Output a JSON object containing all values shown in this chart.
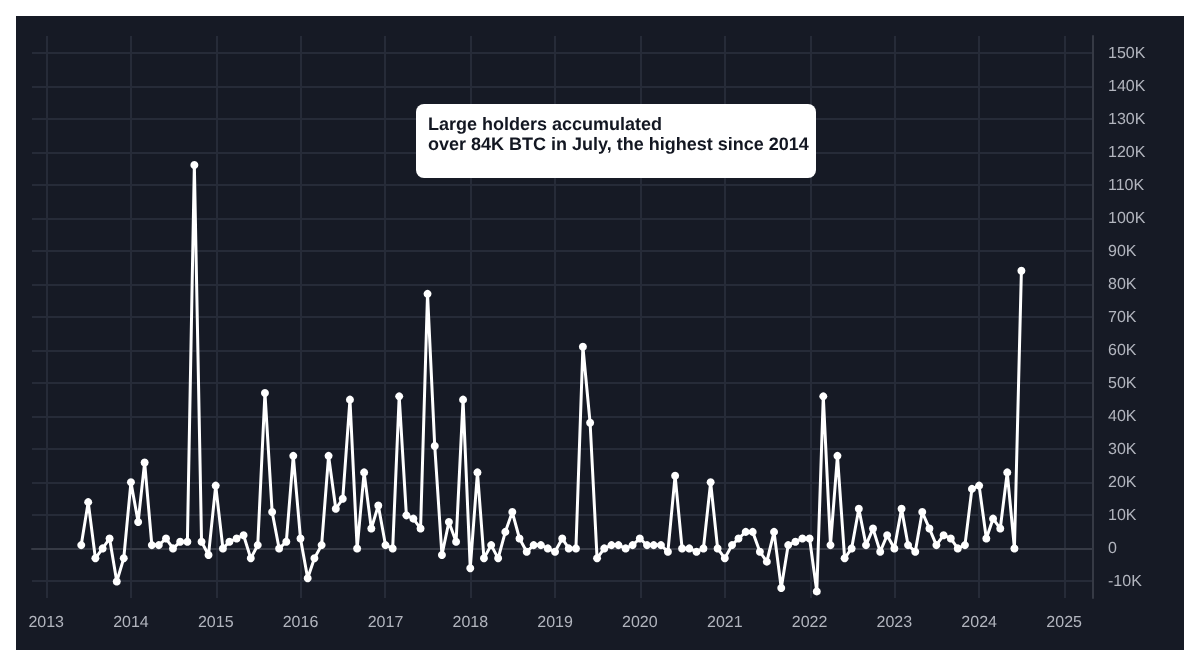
{
  "chart_data": {
    "type": "line",
    "annotations": [
      "Large holders accumulated\nover 84K BTC in July, the highest since 2014"
    ],
    "x": [
      "2013-06",
      "2013-07",
      "2013-08",
      "2013-09",
      "2013-10",
      "2013-11",
      "2013-12",
      "2014-01",
      "2014-02",
      "2014-03",
      "2014-04",
      "2014-05",
      "2014-06",
      "2014-07",
      "2014-08",
      "2014-09",
      "2014-10",
      "2014-11",
      "2014-12",
      "2015-01",
      "2015-02",
      "2015-03",
      "2015-04",
      "2015-05",
      "2015-06",
      "2015-07",
      "2015-08",
      "2015-09",
      "2015-10",
      "2015-11",
      "2015-12",
      "2016-01",
      "2016-02",
      "2016-03",
      "2016-04",
      "2016-05",
      "2016-06",
      "2016-07",
      "2016-08",
      "2016-09",
      "2016-10",
      "2016-11",
      "2016-12",
      "2017-01",
      "2017-02",
      "2017-03",
      "2017-04",
      "2017-05",
      "2017-06",
      "2017-07",
      "2017-08",
      "2017-09",
      "2017-10",
      "2017-11",
      "2017-12",
      "2018-01",
      "2018-02",
      "2018-03",
      "2018-04",
      "2018-05",
      "2018-06",
      "2018-07",
      "2018-08",
      "2018-09",
      "2018-10",
      "2018-11",
      "2018-12",
      "2019-01",
      "2019-02",
      "2019-03",
      "2019-04",
      "2019-05",
      "2019-06",
      "2019-07",
      "2019-08",
      "2019-09",
      "2019-10",
      "2019-11",
      "2019-12",
      "2020-01",
      "2020-02",
      "2020-03",
      "2020-04",
      "2020-05",
      "2020-06",
      "2020-07",
      "2020-08",
      "2020-09",
      "2020-10",
      "2020-11",
      "2020-12",
      "2021-01",
      "2021-02",
      "2021-03",
      "2021-04",
      "2021-05",
      "2021-06",
      "2021-07",
      "2021-08",
      "2021-09",
      "2021-10",
      "2021-11",
      "2021-12",
      "2022-01",
      "2022-02",
      "2022-03",
      "2022-04",
      "2022-05",
      "2022-06",
      "2022-07",
      "2022-08",
      "2022-09",
      "2022-10",
      "2022-11",
      "2022-12",
      "2023-01",
      "2023-02",
      "2023-03",
      "2023-04",
      "2023-05",
      "2023-06",
      "2023-07",
      "2023-08",
      "2023-09",
      "2023-10",
      "2023-11",
      "2023-12",
      "2024-01",
      "2024-02",
      "2024-03",
      "2024-04",
      "2024-05",
      "2024-06",
      "2024-07"
    ],
    "series": [
      {
        "color": "#ffffff",
        "values": [
          1,
          14,
          -3,
          0,
          3,
          -10,
          -3,
          20,
          8,
          26,
          1,
          1,
          3,
          0,
          2,
          2,
          116,
          2,
          -2,
          19,
          0,
          2,
          3,
          4,
          -3,
          1,
          47,
          11,
          0,
          2,
          28,
          3,
          -9,
          -3,
          1,
          28,
          12,
          15,
          45,
          0,
          23,
          6,
          13,
          1,
          0,
          46,
          10,
          9,
          6,
          77,
          31,
          -2,
          8,
          2,
          45,
          -6,
          23,
          -3,
          1,
          -3,
          5,
          11,
          3,
          -1,
          1,
          1,
          0,
          -1,
          3,
          0,
          0,
          61,
          38,
          -3,
          0,
          1,
          1,
          0,
          1,
          3,
          1,
          1,
          1,
          -1,
          22,
          0,
          0,
          -1,
          0,
          20,
          0,
          -3,
          1,
          3,
          5,
          5,
          -1,
          -4,
          5,
          -12,
          1,
          2,
          3,
          3,
          -13,
          46,
          1,
          28,
          -3,
          0,
          12,
          1,
          6,
          -1,
          4,
          0,
          12,
          1,
          -1,
          11,
          6,
          1,
          4,
          3,
          0,
          1,
          18,
          19,
          3,
          9,
          6,
          23,
          0,
          84
        ]
      }
    ],
    "xlim": [
      "2012-11",
      "2025-05"
    ],
    "xticks": [
      "2013",
      "2014",
      "2015",
      "2016",
      "2017",
      "2018",
      "2019",
      "2020",
      "2021",
      "2022",
      "2023",
      "2024",
      "2025"
    ],
    "ylim": [
      -15,
      155
    ],
    "yticks": [
      {
        "value": -10,
        "label": "-10K"
      },
      {
        "value": 0,
        "label": "0"
      },
      {
        "value": 10,
        "label": "10K"
      },
      {
        "value": 20,
        "label": "20K"
      },
      {
        "value": 30,
        "label": "30K"
      },
      {
        "value": 40,
        "label": "40K"
      },
      {
        "value": 50,
        "label": "50K"
      },
      {
        "value": 60,
        "label": "60K"
      },
      {
        "value": 70,
        "label": "70K"
      },
      {
        "value": 80,
        "label": "80K"
      },
      {
        "value": 90,
        "label": "90K"
      },
      {
        "value": 100,
        "label": "100K"
      },
      {
        "value": 110,
        "label": "110K"
      },
      {
        "value": 120,
        "label": "120K"
      },
      {
        "value": 130,
        "label": "130K"
      },
      {
        "value": 140,
        "label": "140K"
      },
      {
        "value": 150,
        "label": "150K"
      }
    ],
    "grid": true,
    "marker": "circle",
    "line_style": "solid"
  }
}
